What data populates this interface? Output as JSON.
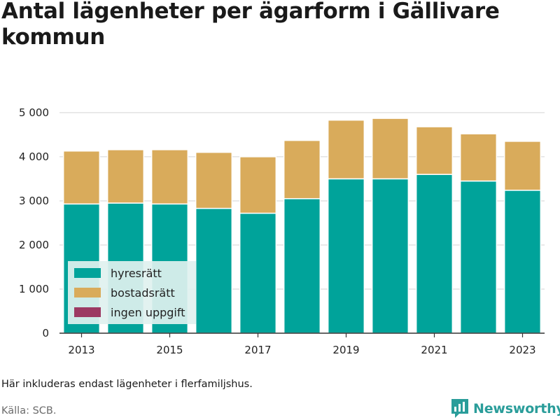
{
  "title": "Antal lägenheter per ägarform i Gällivare kommun",
  "note": "Här inkluderas endast lägenheter i flerfamiljshus.",
  "source": "Källa: SCB.",
  "brand": "Newsworthy",
  "colors": {
    "hyresratt": "#00a39a",
    "bostadsratt": "#d9ab5b",
    "ingen_uppgift": "#9c3a63",
    "grid": "#e2e2e2",
    "legend_bg": "#dff1ef",
    "brand": "#2a9d9a"
  },
  "chart_data": {
    "type": "bar",
    "stacked": true,
    "x": [
      2013,
      2014,
      2015,
      2016,
      2017,
      2018,
      2019,
      2020,
      2021,
      2022,
      2023
    ],
    "x_tick_labels": [
      "2013",
      "2015",
      "2017",
      "2019",
      "2021",
      "2023"
    ],
    "y_tick_values": [
      0,
      1000,
      2000,
      3000,
      4000,
      5000
    ],
    "y_tick_labels": [
      "0",
      "1 000",
      "2 000",
      "3 000",
      "4 000",
      "5 000"
    ],
    "ylim": [
      0,
      5300
    ],
    "grid": true,
    "legend_position": "bottom-left",
    "series": [
      {
        "name": "hyresrätt",
        "color": "#00a39a",
        "values": [
          2930,
          2950,
          2930,
          2830,
          2720,
          3050,
          3500,
          3500,
          3600,
          3450,
          3240
        ]
      },
      {
        "name": "bostadsrätt",
        "color": "#d9ab5b",
        "values": [
          1200,
          1210,
          1230,
          1270,
          1280,
          1320,
          1330,
          1370,
          1080,
          1070,
          1110
        ]
      },
      {
        "name": "ingen uppgift",
        "color": "#9c3a63",
        "values": [
          0,
          0,
          0,
          0,
          0,
          0,
          0,
          0,
          0,
          0,
          0
        ]
      }
    ]
  }
}
